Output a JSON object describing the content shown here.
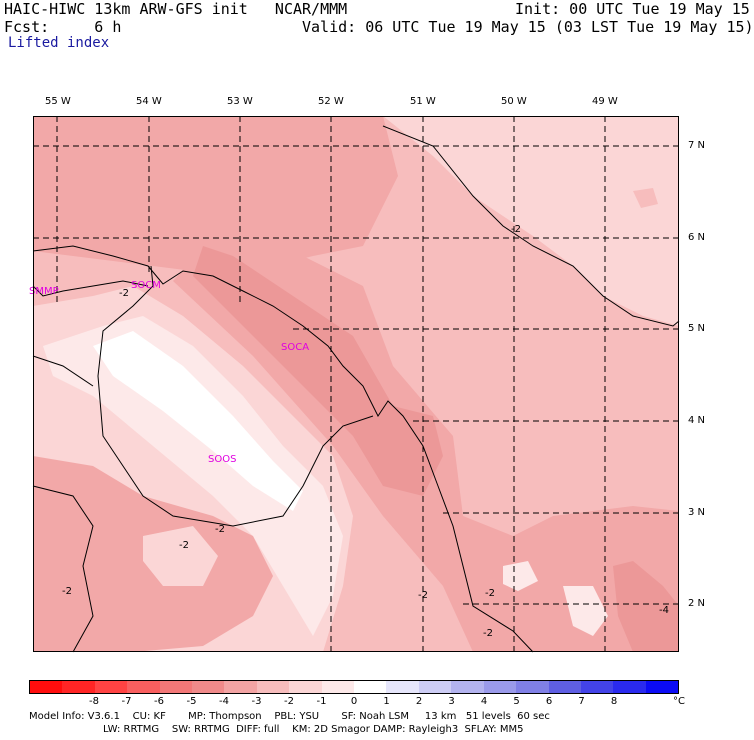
{
  "header": {
    "title": "HAIC-HIWC 13km ARW-GFS init   NCAR/MMM",
    "init": "Init: 00 UTC Tue 19 May 15",
    "fcst": "Fcst:     6 h",
    "valid": "Valid: 06 UTC Tue 19 May 15 (03 LST Tue 19 May 15)",
    "field": "Lifted index"
  },
  "map": {
    "lon_labels": [
      "55 W",
      "54 W",
      "53 W",
      "52 W",
      "51 W",
      "50 W",
      "49 W"
    ],
    "lat_labels": [
      "7 N",
      "6 N",
      "5 N",
      "4 N",
      "3 N",
      "2 N"
    ],
    "stations": [
      "SMMP",
      "SOCM",
      "SOCA",
      "SOOS"
    ],
    "contour_labels": [
      "-2",
      "-2",
      "-2",
      "-2",
      "-2",
      "-2",
      "-2",
      "-4",
      "-2"
    ],
    "colors": {
      "lvl_-5": "#ec9898",
      "lvl_-4": "#f2a8a8",
      "lvl_-3": "#f7bdbd",
      "lvl_-2": "#fbd6d6",
      "lvl_-1": "#fde9e9",
      "lvl_0": "#ffffff",
      "station": "#e000e0"
    }
  },
  "colorbar": {
    "colors": [
      "#ff0d0d",
      "#ff2525",
      "#ff4343",
      "#f95f5f",
      "#f37878",
      "#f08a8a",
      "#f3a4a4",
      "#f7bdbd",
      "#fbd6d6",
      "#fde9e9",
      "#ffffff",
      "#e6e6fb",
      "#cdcdf5",
      "#b3b3ef",
      "#9a9aea",
      "#8080e6",
      "#5f5fe3",
      "#4343e8",
      "#2a2aee",
      "#0b0bf5"
    ],
    "labels": [
      "-8",
      "-7",
      "-6",
      "-5",
      "-4",
      "-3",
      "-2",
      "-1",
      "0",
      "1",
      "2",
      "3",
      "4",
      "5",
      "6",
      "7",
      "8"
    ],
    "unit": "°C"
  },
  "footer": {
    "line1": "Model Info: V3.6.1    CU: KF       MP: Thompson    PBL: YSU       SF: Noah LSM     13 km   51 levels  60 sec",
    "line2": "LW: RRTMG    SW: RRTMG  DIFF: full    KM: 2D Smagor DAMP: Rayleigh3  SFLAY: MM5"
  }
}
